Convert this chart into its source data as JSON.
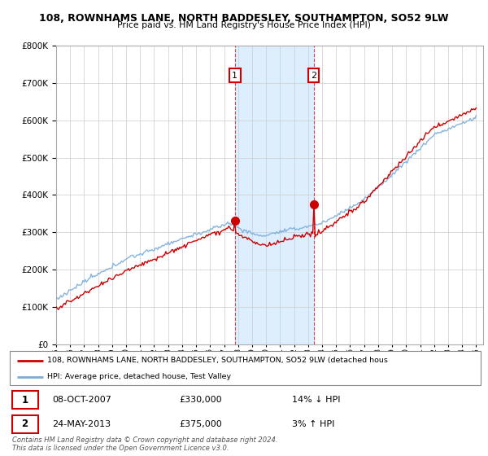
{
  "title1": "108, ROWNHAMS LANE, NORTH BADDESLEY, SOUTHAMPTON, SO52 9LW",
  "title2": "Price paid vs. HM Land Registry's House Price Index (HPI)",
  "legend_line1": "108, ROWNHAMS LANE, NORTH BADDESLEY, SOUTHAMPTON, SO52 9LW (detached hous",
  "legend_line2": "HPI: Average price, detached house, Test Valley",
  "point1_date": "08-OCT-2007",
  "point1_price": "£330,000",
  "point1_hpi": "14% ↓ HPI",
  "point2_date": "24-MAY-2013",
  "point2_price": "£375,000",
  "point2_hpi": "3% ↑ HPI",
  "footer": "Contains HM Land Registry data © Crown copyright and database right 2024.\nThis data is licensed under the Open Government Licence v3.0.",
  "red_color": "#cc0000",
  "blue_color": "#7aaddb",
  "shade_color": "#ddeeff",
  "point1_x": 2007.77,
  "point2_x": 2013.39,
  "p1_y": 330000,
  "p2_y": 375000,
  "ylim": [
    0,
    800000
  ],
  "xlim_left": 1995.0,
  "xlim_right": 2025.5
}
